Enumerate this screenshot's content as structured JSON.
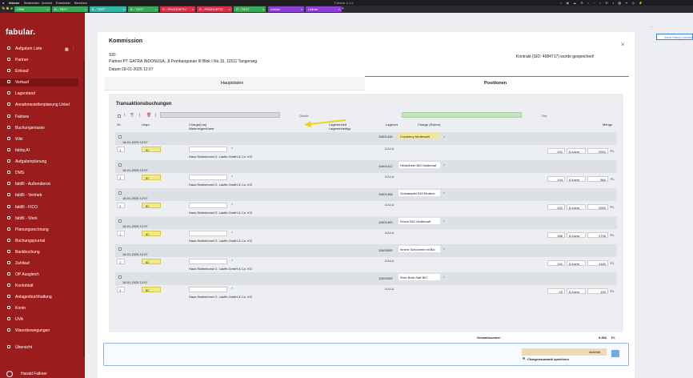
{
  "menubar": {
    "app": "fabular",
    "menus": [
      "Bearbeiten",
      "Ansicht",
      "Entwickler",
      "Benutzer"
    ],
    "window_title": "Fabular 4.1.6"
  },
  "tabs": [
    {
      "label": "CRM",
      "color": "#3aa757"
    },
    {
      "label": "B - TEST",
      "color": "#3aa757"
    },
    {
      "label": "B - TEST",
      "color": "#2fb6a4"
    },
    {
      "label": "B - TEST",
      "color": "#3aa757"
    },
    {
      "label": "R - PRODUKTIV",
      "color": "#d9304a"
    },
    {
      "label": "R - PRODUKTIV",
      "color": "#d9304a"
    },
    {
      "label": "R - TEST",
      "color": "#3aa757"
    },
    {
      "label": "Leitner",
      "color": "#8b3fd6"
    },
    {
      "label": "Leitner",
      "color": "#8b3fd6"
    }
  ],
  "sidebar": {
    "logo": "fabular.",
    "items": [
      "Aufgaben Liste",
      "Partner",
      "Einkauf",
      "Verkauf",
      "Lagerstand",
      "Annahmestellenplanung Unkel",
      "Faktura",
      "Buchungsmaske",
      "Wiki",
      "fabby.AI",
      "Aufgabenplanung",
      "DMS",
      "fabBI - Außendienst",
      "fabBI - Vertrieb",
      "fabBI - FICO",
      "fabBI - Werk",
      "Planungsrechnung",
      "Buchungsjournal",
      "Bankbuchung",
      "Zahllauf",
      "OP Ausgleich",
      "Kontoblatt",
      "Anlagenbuchhaltung",
      "Konto",
      "UVA",
      "Warenbewegungen",
      "Übersicht"
    ],
    "user": "Harald Falkner"
  },
  "main": {
    "title": "Kommission",
    "sid_label": "SID:",
    "partner": "Partner:PT GATRA INDONUSA, Jl.Pembangunan III Blok I No.15, 11511 Tangerang",
    "datum": "Datum:18-01-2025 12:07",
    "saved_msg": "Kontrakt (SID: 4084717) wurde gespeichert!",
    "tab_haupt": "Hauptdaten",
    "tab_pos": "Positionen",
    "section_title": "Transaktionsbuchungen",
    "quelle": "Quelle",
    "ziel": "Ziel",
    "headers": {
      "gr": "Gr.",
      "ursp": "Urspr.",
      "charge": "Charge(Los)",
      "wareneigentuemer": "Wareneigentümer",
      "lagereinheit": "Lagereinheit",
      "lagereinheittyp": "Lagereinheittyp",
      "lagerort": "Lagerort",
      "charge_extern": "Charge (Extern)",
      "menge": "Menge"
    },
    "rows": [
      {
        "date": "18-01-2025 12:07",
        "gr": "1",
        "ursp": "ID",
        "owner": "Haus Rabenhorst O. Lauffs GmbH & Co. KG",
        "lagerort": "11601416",
        "uuu": "U-U-U",
        "product": "Cranberry Muttersaft",
        "qty": "432",
        "unit": "6-Karto",
        "total": "2592",
        "fl": "FL"
      },
      {
        "date": "18-01-2025 12:07",
        "gr": "1",
        "ursp": "ID",
        "owner": "Haus Rabenhorst O. Lauffs GmbH & Co. KG",
        "lagerort": "11601412",
        "uuu": "U-U-U",
        "product": "Heidelbeer BIO Muttersaf",
        "qty": "144",
        "unit": "6-Karto",
        "total": "864",
        "fl": "FL"
      },
      {
        "date": "18-01-2025 12:07",
        "gr": "1",
        "ursp": "ID",
        "owner": "Haus Rabenhorst O. Lauffs GmbH & Co. KG",
        "lagerort": "11601408",
        "uuu": "U-U-U",
        "product": "Granatapfel BIO Mutters",
        "qty": "432",
        "unit": "6-Karto",
        "total": "2592",
        "fl": "FL"
      },
      {
        "date": "18-01-2025 12:07",
        "gr": "1",
        "ursp": "ID",
        "owner": "Haus Rabenhorst O. Lauffs GmbH & Co. KG",
        "lagerort": "11601405",
        "uuu": "U-U-U",
        "product": "Kirsch BIO Muttersaft",
        "qty": "288",
        "unit": "6-Karto",
        "total": "1728",
        "fl": "FL"
      },
      {
        "date": "18-01-2025 12:07",
        "gr": "1",
        "ursp": "ID",
        "owner": "Haus Rabenhorst O. Lauffs GmbH & Co. KG",
        "lagerort": "11600005",
        "uuu": "U-U-U",
        "product": "Innere Schönheit mit Bio",
        "qty": "240",
        "unit": "6-Karto",
        "total": "1440",
        "fl": "FL"
      },
      {
        "date": "18-01-2025 12:07",
        "gr": "1",
        "ursp": "ID",
        "owner": "Haus Rabenhorst O. Lauffs GmbH & Co. KG",
        "lagerort": "11600425",
        "uuu": "U-U-U",
        "product": "Rote-Bete-Saft BIO",
        "qty": "25",
        "unit": "6-Karto",
        "total": "150",
        "fl": "FL"
      }
    ],
    "gesamt_label": "Gesamtsumme:",
    "gesamt_value": "9.366",
    "gesamt_unit": "FL",
    "page": "1",
    "aktivitaet": "Aktivität",
    "chargen_label": "Chargenauswahl speichern",
    "history_btn": "Keine History vorhanden"
  }
}
